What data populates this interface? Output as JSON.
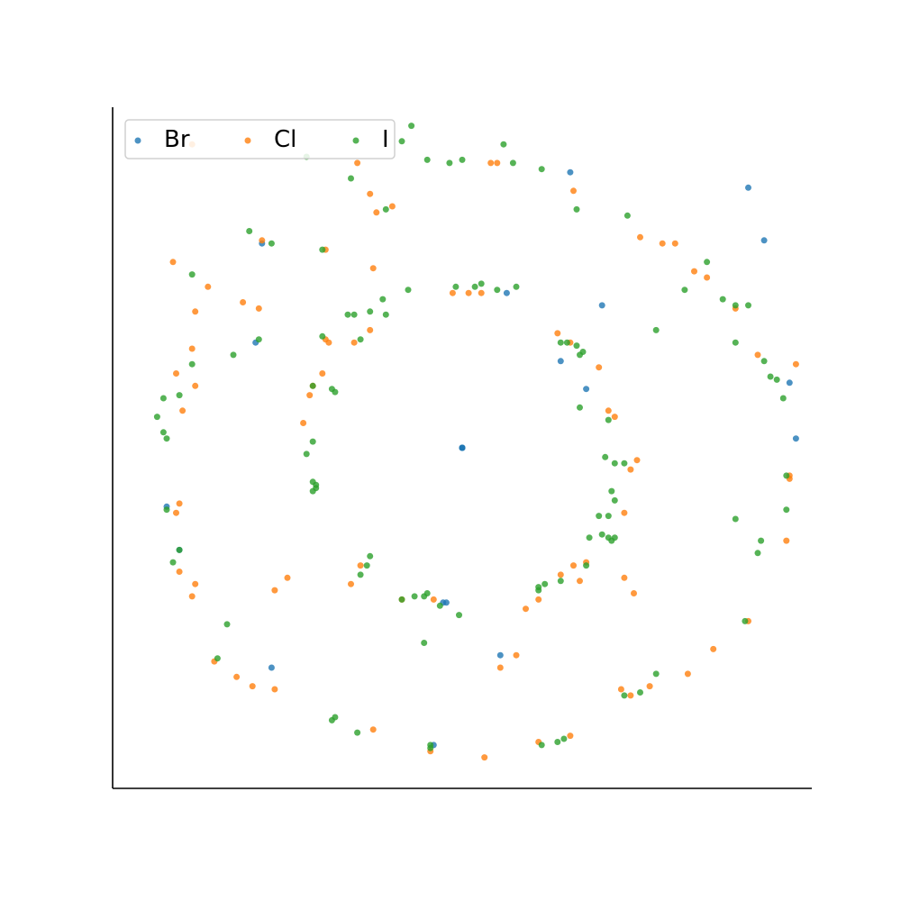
{
  "chart_data": {
    "type": "scatter",
    "title": "",
    "xlabel": "",
    "ylabel": "",
    "xlim": [
      -1.1,
      1.1
    ],
    "ylim": [
      -1.1,
      1.1
    ],
    "grid": false,
    "axes_visible": [
      "left",
      "bottom"
    ],
    "legend": {
      "placement": "top-left",
      "columns": 3
    },
    "series": [
      {
        "name": "Br",
        "color": "#1f77b4",
        "points": [
          [
            0.0,
            0.0
          ],
          [
            0.0,
            0.0
          ],
          [
            0.0,
            0.0
          ],
          [
            0.0,
            0.0
          ],
          [
            0.9,
            0.84
          ],
          [
            0.95,
            0.67
          ],
          [
            1.03,
            0.21
          ],
          [
            1.05,
            0.03
          ],
          [
            0.44,
            0.46
          ],
          [
            0.39,
            0.19
          ],
          [
            0.14,
            0.5
          ],
          [
            0.31,
            0.28
          ],
          [
            -0.06,
            -0.5
          ],
          [
            -0.05,
            -0.5
          ],
          [
            -0.65,
            0.34
          ],
          [
            -0.93,
            -0.19
          ],
          [
            -0.89,
            -0.33
          ],
          [
            -0.6,
            -0.71
          ],
          [
            0.12,
            -0.67
          ],
          [
            -0.09,
            -0.96
          ],
          [
            0.34,
            0.89
          ],
          [
            -0.63,
            0.66
          ]
        ]
      },
      {
        "name": "Cl",
        "color": "#ff7f0e",
        "points": [
          [
            -0.33,
            0.92
          ],
          [
            -0.29,
            0.82
          ],
          [
            -0.22,
            0.78
          ],
          [
            -0.28,
            0.58
          ],
          [
            -0.63,
            0.67
          ],
          [
            -0.91,
            0.6
          ],
          [
            -0.8,
            0.52
          ],
          [
            -0.69,
            0.47
          ],
          [
            -0.84,
            0.44
          ],
          [
            -0.64,
            0.45
          ],
          [
            -0.85,
            0.32
          ],
          [
            -0.9,
            0.24
          ],
          [
            -0.84,
            0.2
          ],
          [
            -0.88,
            0.12
          ],
          [
            -0.89,
            -0.18
          ],
          [
            -0.9,
            -0.21
          ],
          [
            -0.89,
            -0.4
          ],
          [
            -0.84,
            -0.44
          ],
          [
            -0.85,
            -0.48
          ],
          [
            -0.78,
            -0.69
          ],
          [
            -0.71,
            -0.74
          ],
          [
            -0.66,
            -0.77
          ],
          [
            -0.59,
            -0.78
          ],
          [
            -0.59,
            -0.46
          ],
          [
            -0.55,
            -0.42
          ],
          [
            -0.32,
            -0.38
          ],
          [
            -0.35,
            -0.44
          ],
          [
            -0.19,
            -0.49
          ],
          [
            -0.09,
            -0.49
          ],
          [
            0.2,
            -0.52
          ],
          [
            0.24,
            -0.49
          ],
          [
            0.31,
            -0.41
          ],
          [
            0.37,
            -0.43
          ],
          [
            0.35,
            -0.38
          ],
          [
            0.39,
            -0.37
          ],
          [
            0.51,
            -0.21
          ],
          [
            0.53,
            -0.07
          ],
          [
            0.55,
            -0.04
          ],
          [
            0.48,
            0.1
          ],
          [
            0.46,
            0.12
          ],
          [
            0.43,
            0.26
          ],
          [
            0.34,
            0.34
          ],
          [
            0.3,
            0.37
          ],
          [
            0.06,
            0.5
          ],
          [
            0.02,
            0.5
          ],
          [
            -0.03,
            0.5
          ],
          [
            -0.29,
            0.38
          ],
          [
            -0.34,
            0.34
          ],
          [
            -0.42,
            0.34
          ],
          [
            -0.44,
            0.24
          ],
          [
            -0.48,
            0.17
          ],
          [
            -0.47,
            0.2
          ],
          [
            -0.5,
            0.08
          ],
          [
            -0.43,
            0.35
          ],
          [
            -0.43,
            0.64
          ],
          [
            -0.27,
            0.76
          ],
          [
            0.09,
            0.92
          ],
          [
            0.11,
            0.92
          ],
          [
            0.35,
            0.83
          ],
          [
            0.56,
            0.68
          ],
          [
            0.63,
            0.66
          ],
          [
            0.67,
            0.66
          ],
          [
            0.73,
            0.57
          ],
          [
            0.77,
            0.55
          ],
          [
            0.86,
            0.45
          ],
          [
            0.93,
            0.3
          ],
          [
            1.05,
            0.27
          ],
          [
            1.03,
            -0.09
          ],
          [
            1.03,
            -0.1
          ],
          [
            1.02,
            -0.3
          ],
          [
            0.9,
            -0.56
          ],
          [
            0.79,
            -0.65
          ],
          [
            0.71,
            -0.73
          ],
          [
            0.59,
            -0.77
          ],
          [
            0.53,
            -0.8
          ],
          [
            0.5,
            -0.78
          ],
          [
            0.51,
            -0.42
          ],
          [
            0.54,
            -0.47
          ],
          [
            0.34,
            -0.93
          ],
          [
            0.24,
            -0.95
          ],
          [
            0.17,
            -0.67
          ],
          [
            0.12,
            -0.71
          ],
          [
            -0.1,
            -0.98
          ],
          [
            0.07,
            -1.0
          ],
          [
            -0.28,
            -0.91
          ],
          [
            -0.85,
            0.98
          ]
        ]
      },
      {
        "name": "I",
        "color": "#2ca02c",
        "points": [
          [
            -0.49,
            0.94
          ],
          [
            -0.35,
            0.87
          ],
          [
            -0.24,
            0.77
          ],
          [
            -0.19,
            0.99
          ],
          [
            -0.16,
            1.04
          ],
          [
            -0.11,
            0.93
          ],
          [
            -0.04,
            0.92
          ],
          [
            0.0,
            0.93
          ],
          [
            0.13,
            0.98
          ],
          [
            0.16,
            0.92
          ],
          [
            0.25,
            0.9
          ],
          [
            0.36,
            0.77
          ],
          [
            0.52,
            0.75
          ],
          [
            0.7,
            0.51
          ],
          [
            0.77,
            0.6
          ],
          [
            0.82,
            0.48
          ],
          [
            0.86,
            0.46
          ],
          [
            0.9,
            0.46
          ],
          [
            0.86,
            0.34
          ],
          [
            0.61,
            0.38
          ],
          [
            0.95,
            0.28
          ],
          [
            0.97,
            0.23
          ],
          [
            0.99,
            0.22
          ],
          [
            1.01,
            0.16
          ],
          [
            0.86,
            -0.23
          ],
          [
            0.93,
            -0.34
          ],
          [
            0.94,
            -0.3
          ],
          [
            1.02,
            -0.09
          ],
          [
            1.02,
            -0.2
          ],
          [
            0.89,
            -0.56
          ],
          [
            0.61,
            -0.73
          ],
          [
            0.56,
            -0.79
          ],
          [
            0.51,
            -0.8
          ],
          [
            0.32,
            -0.94
          ],
          [
            0.3,
            -0.95
          ],
          [
            0.25,
            -0.96
          ],
          [
            -0.1,
            -0.96
          ],
          [
            -0.1,
            -0.97
          ],
          [
            -0.33,
            -0.92
          ],
          [
            -0.41,
            -0.88
          ],
          [
            -0.4,
            -0.87
          ],
          [
            -0.74,
            -0.57
          ],
          [
            -0.77,
            -0.68
          ],
          [
            -0.89,
            -0.33
          ],
          [
            -0.91,
            -0.37
          ],
          [
            -0.93,
            -0.2
          ],
          [
            -0.96,
            0.1
          ],
          [
            -0.93,
            0.03
          ],
          [
            -0.94,
            0.05
          ],
          [
            -0.85,
            0.27
          ],
          [
            -0.94,
            0.16
          ],
          [
            -0.89,
            0.17
          ],
          [
            -0.72,
            0.3
          ],
          [
            -0.64,
            0.35
          ],
          [
            -0.44,
            0.36
          ],
          [
            -0.36,
            0.43
          ],
          [
            -0.34,
            0.43
          ],
          [
            -0.29,
            0.44
          ],
          [
            -0.25,
            0.48
          ],
          [
            -0.17,
            0.51
          ],
          [
            -0.02,
            0.52
          ],
          [
            0.04,
            0.52
          ],
          [
            0.06,
            0.53
          ],
          [
            0.17,
            0.52
          ],
          [
            0.11,
            0.51
          ],
          [
            0.31,
            0.34
          ],
          [
            0.33,
            0.34
          ],
          [
            0.37,
            0.3
          ],
          [
            0.36,
            0.33
          ],
          [
            0.38,
            0.31
          ],
          [
            0.37,
            0.13
          ],
          [
            0.46,
            0.09
          ],
          [
            0.45,
            -0.03
          ],
          [
            0.48,
            -0.05
          ],
          [
            0.51,
            -0.05
          ],
          [
            0.47,
            -0.14
          ],
          [
            0.48,
            -0.17
          ],
          [
            0.46,
            -0.29
          ],
          [
            0.47,
            -0.3
          ],
          [
            0.46,
            -0.22
          ],
          [
            0.43,
            -0.22
          ],
          [
            0.48,
            -0.29
          ],
          [
            0.4,
            -0.29
          ],
          [
            0.44,
            -0.28
          ],
          [
            0.39,
            -0.38
          ],
          [
            0.31,
            -0.43
          ],
          [
            0.26,
            -0.44
          ],
          [
            0.24,
            -0.45
          ],
          [
            0.24,
            -0.46
          ],
          [
            -0.01,
            -0.54
          ],
          [
            -0.07,
            -0.51
          ],
          [
            -0.12,
            -0.48
          ],
          [
            -0.15,
            -0.48
          ],
          [
            -0.19,
            -0.49
          ],
          [
            -0.29,
            -0.35
          ],
          [
            -0.3,
            -0.38
          ],
          [
            -0.32,
            -0.41
          ],
          [
            -0.47,
            -0.14
          ],
          [
            -0.46,
            -0.13
          ],
          [
            -0.46,
            -0.12
          ],
          [
            -0.47,
            -0.11
          ],
          [
            -0.49,
            -0.02
          ],
          [
            -0.47,
            0.02
          ],
          [
            -0.4,
            0.18
          ],
          [
            -0.41,
            0.19
          ],
          [
            -0.32,
            0.35
          ],
          [
            -0.24,
            0.43
          ],
          [
            -0.47,
            0.2
          ],
          [
            -0.11,
            -0.47
          ],
          [
            -0.12,
            -0.63
          ],
          [
            -0.85,
            0.56
          ],
          [
            -0.67,
            0.7
          ],
          [
            -0.6,
            0.66
          ],
          [
            -0.44,
            0.64
          ]
        ]
      }
    ]
  }
}
